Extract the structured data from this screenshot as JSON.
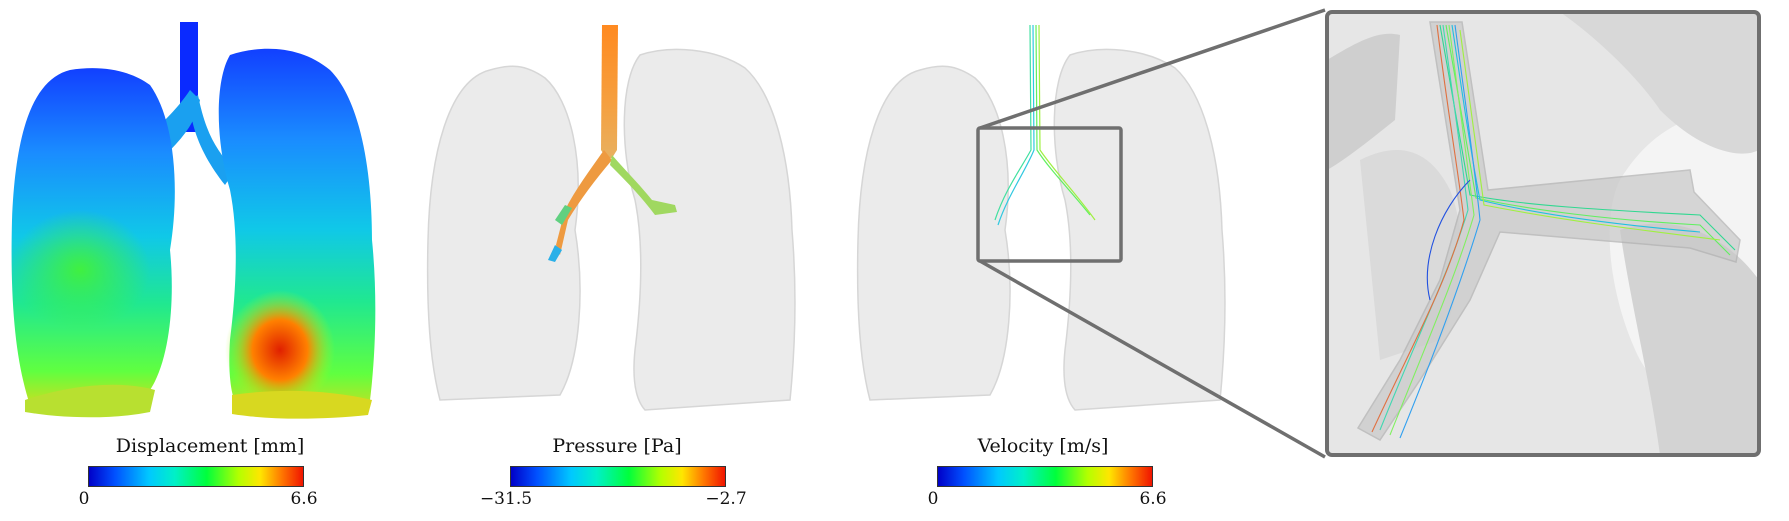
{
  "panels": [
    {
      "id": "displacement",
      "colorbar": {
        "title": "Displacement [mm]",
        "min": "0",
        "max": "6.6"
      }
    },
    {
      "id": "pressure",
      "colorbar": {
        "title": "Pressure [Pa]",
        "min": "−31.5",
        "max": "−2.7"
      }
    },
    {
      "id": "velocity",
      "colorbar": {
        "title": "Velocity [m/s]",
        "min": "0",
        "max": "6.6"
      }
    }
  ],
  "colors": {
    "lung_translucent": "#e6e6e6",
    "zoom_frame": "#6f6f6f",
    "colormap": [
      "#0000c8",
      "#00c8ff",
      "#00ff3c",
      "#ffe600",
      "#f01400"
    ]
  }
}
